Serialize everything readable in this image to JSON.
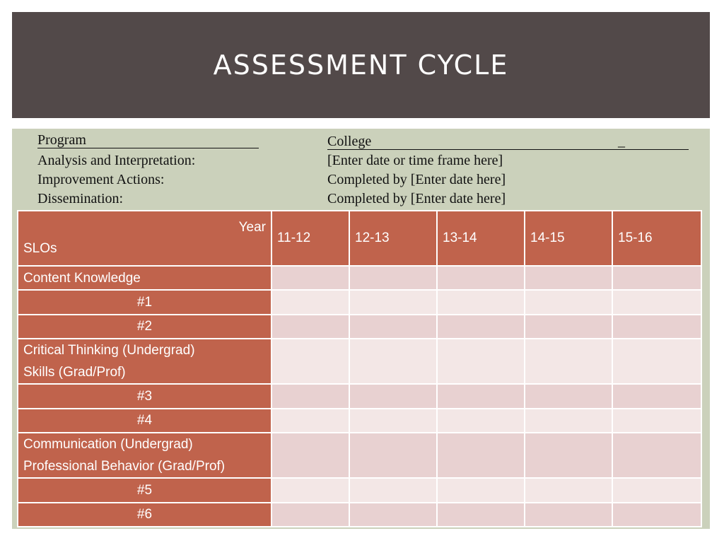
{
  "title": "ASSESSMENT CYCLE",
  "info": {
    "program_label": "Program",
    "college_label": "College",
    "college_blank": "_",
    "analysis_label": "Analysis and Interpretation:",
    "analysis_value": "[Enter date or time frame here]",
    "improvement_label": "Improvement Actions:",
    "improvement_value": "Completed by [Enter date here]",
    "dissemination_label": "Dissemination:",
    "dissemination_value": "Completed by [Enter date here]"
  },
  "table": {
    "corner_year": "Year",
    "corner_slos": "SLOs",
    "years": [
      "11-12",
      "12-13",
      "13-14",
      "14-15",
      "15-16"
    ],
    "rows": [
      {
        "lines": [
          "Content Knowledge"
        ],
        "align": "left"
      },
      {
        "lines": [
          "#1"
        ],
        "align": "center"
      },
      {
        "lines": [
          "#2"
        ],
        "align": "center"
      },
      {
        "lines": [
          "Critical Thinking (Undergrad)",
          "Skills (Grad/Prof)"
        ],
        "align": "left"
      },
      {
        "lines": [
          "#3"
        ],
        "align": "center"
      },
      {
        "lines": [
          "#4"
        ],
        "align": "center"
      },
      {
        "lines": [
          "Communication (Undergrad)",
          "Professional Behavior  (Grad/Prof)"
        ],
        "align": "left"
      },
      {
        "lines": [
          "#5"
        ],
        "align": "center"
      },
      {
        "lines": [
          "#6"
        ],
        "align": "center"
      }
    ]
  },
  "colors": {
    "title_band": "#524949",
    "panel": "#cbd1bb",
    "header_fill": "#c0634c",
    "cell_odd": "#e8d1d1",
    "cell_even": "#f3e7e6"
  }
}
